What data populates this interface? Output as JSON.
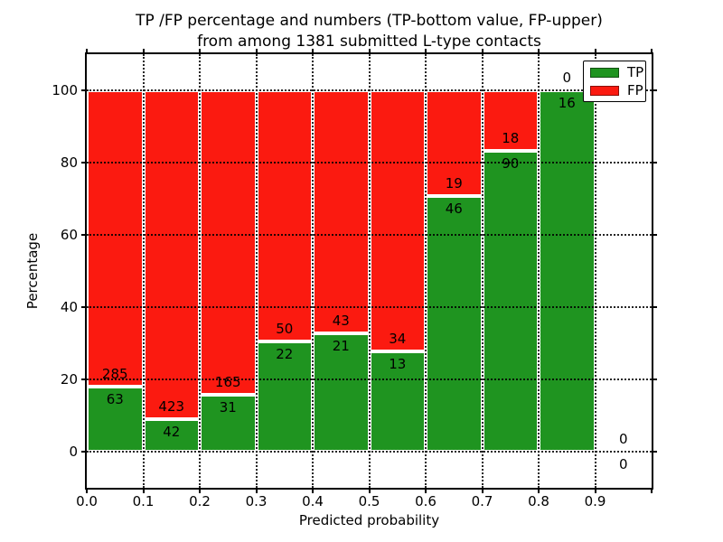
{
  "figure": {
    "title_line1": "TP /FP percentage and numbers (TP-bottom value, FP-upper)",
    "title_line2": "from among 1381 submitted L-type contacts"
  },
  "chart_data": {
    "type": "bar",
    "stacked": true,
    "title": "TP /FP percentage and numbers (TP-bottom value, FP-upper) from among 1381 submitted L-type contacts",
    "xlabel": "Predicted probability",
    "ylabel": "Percentage",
    "xlim": [
      0.0,
      1.0
    ],
    "ylim": [
      -10,
      110
    ],
    "grid": true,
    "total_contacts": 1381,
    "bin_width": 0.1,
    "bin_starts": [
      0.0,
      0.1,
      0.2,
      0.3,
      0.4,
      0.5,
      0.6,
      0.7,
      0.8,
      0.9
    ],
    "x_tick_labels": [
      "0.0",
      "0.1",
      "0.2",
      "0.3",
      "0.4",
      "0.5",
      "0.6",
      "0.7",
      "0.8",
      "0.9"
    ],
    "y_tick_values": [
      0,
      20,
      40,
      60,
      80,
      100
    ],
    "y_tick_labels": [
      "0",
      "20",
      "40",
      "60",
      "80",
      "100"
    ],
    "bar_unit": "percent of bin total (TP green bottom, FP red top, stacked to 100%)",
    "series": [
      {
        "name": "TP",
        "color": "#1f9420",
        "values": [
          63,
          42,
          31,
          22,
          21,
          13,
          46,
          90,
          16,
          0
        ]
      },
      {
        "name": "FP",
        "color": "#fb1a10",
        "values": [
          285,
          423,
          165,
          50,
          43,
          34,
          19,
          18,
          0,
          0
        ]
      }
    ],
    "tp_percent_by_bin": [
      18.1,
      9.0,
      15.8,
      30.6,
      32.8,
      27.7,
      70.8,
      83.3,
      100.0,
      0.0
    ],
    "legend": {
      "position": "upper right",
      "labels": [
        "TP",
        "FP"
      ]
    }
  }
}
